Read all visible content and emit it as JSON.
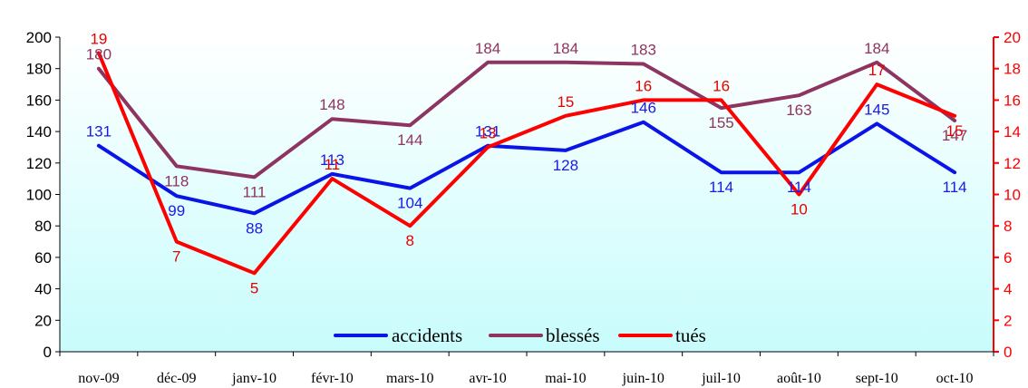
{
  "chart_data": {
    "type": "line",
    "categories": [
      "nov-09",
      "déc-09",
      "janv-10",
      "févr-10",
      "mars-10",
      "avr-10",
      "mai-10",
      "juin-10",
      "juil-10",
      "août-10",
      "sept-10",
      "oct-10"
    ],
    "left_axis": {
      "ylim": [
        0,
        200
      ],
      "ticks": [
        "0",
        "20",
        "40",
        "60",
        "80",
        "100",
        "120",
        "140",
        "160",
        "180",
        "200"
      ]
    },
    "right_axis": {
      "ylim": [
        0,
        20
      ],
      "ticks": [
        "0",
        "2",
        "4",
        "6",
        "8",
        "10",
        "12",
        "14",
        "16",
        "18",
        "20"
      ],
      "color": "#ff0000"
    },
    "series": [
      {
        "name": "accidents",
        "axis": "left",
        "color": "#0a14e6",
        "label_color": "#1a1ae6",
        "values": [
          131,
          99,
          88,
          113,
          104,
          131,
          128,
          146,
          114,
          114,
          145,
          114
        ],
        "labels": [
          "131",
          "99",
          "88",
          "113",
          "104",
          "131",
          "128",
          "146",
          "114",
          "114",
          "145",
          "114"
        ]
      },
      {
        "name": "blessés",
        "axis": "left",
        "color": "#8e3460",
        "label_color": "#8e3460",
        "values": [
          180,
          118,
          111,
          148,
          144,
          184,
          184,
          183,
          155,
          163,
          184,
          147
        ],
        "labels": [
          "180",
          "118",
          "111",
          "148",
          "144",
          "184",
          "184",
          "183",
          "155",
          "163",
          "184",
          "147"
        ]
      },
      {
        "name": "tués",
        "axis": "right",
        "color": "#ff0000",
        "label_color": "#e60000",
        "values": [
          19,
          7,
          5,
          11,
          8,
          13,
          15,
          16,
          16,
          10,
          17,
          15
        ],
        "labels": [
          "19",
          "7",
          "5",
          "11",
          "8",
          "13",
          "15",
          "16",
          "16",
          "10",
          "17",
          "15"
        ]
      }
    ],
    "legend_position": "bottom-center",
    "grid": false,
    "background": "gradient-white-to-cyan"
  }
}
